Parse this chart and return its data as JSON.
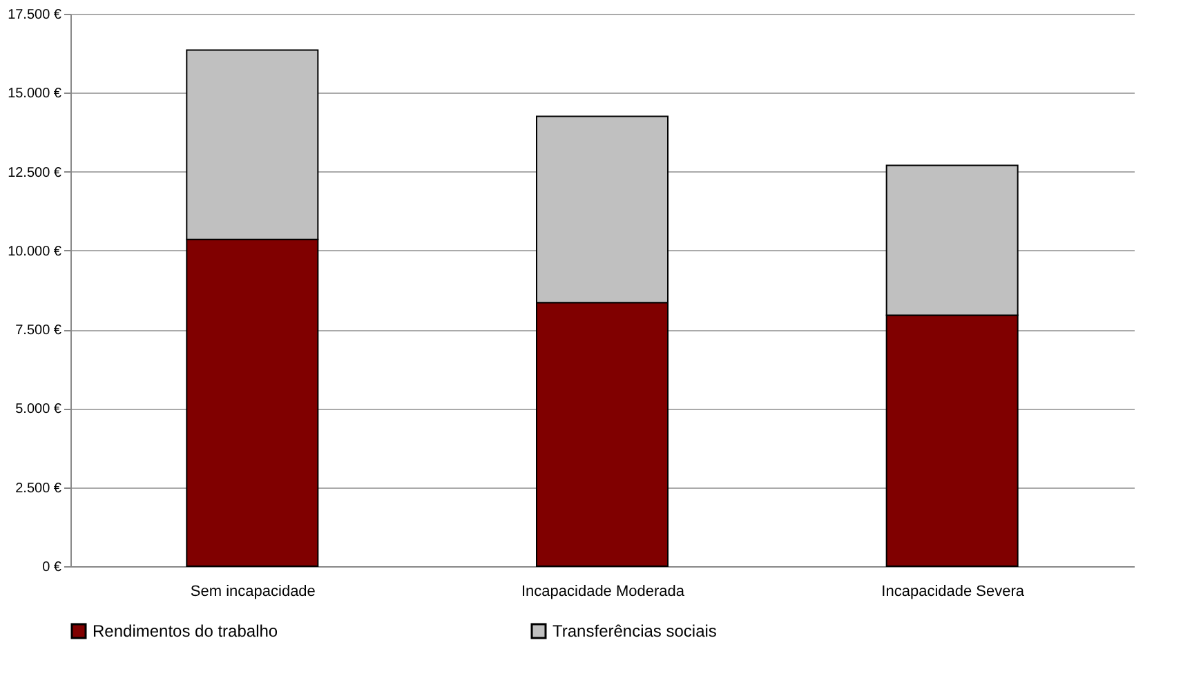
{
  "chart_data": {
    "type": "bar",
    "stacked": true,
    "categories": [
      "Sem incapacidade",
      "Incapacidade Moderada",
      "Incapacidade Severa"
    ],
    "series": [
      {
        "name": "Rendimentos do trabalho",
        "color": "#800000",
        "values": [
          10350,
          8350,
          7950
        ]
      },
      {
        "name": "Transferências sociais",
        "color": "#c0c0c0",
        "values": [
          6000,
          5900,
          4750
        ]
      }
    ],
    "ylim": [
      0,
      17500
    ],
    "yticks": [
      {
        "value": 0,
        "label": "0 €"
      },
      {
        "value": 2500,
        "label": "2.500 €"
      },
      {
        "value": 5000,
        "label": "5.000 €"
      },
      {
        "value": 7500,
        "label": "7.500 €"
      },
      {
        "value": 10000,
        "label": "10.000 €"
      },
      {
        "value": 12500,
        "label": "12.500 €"
      },
      {
        "value": 15000,
        "label": "15.000 €"
      },
      {
        "value": 17500,
        "label": "17.500 €"
      }
    ],
    "grid": "y",
    "legend": "bottom"
  }
}
